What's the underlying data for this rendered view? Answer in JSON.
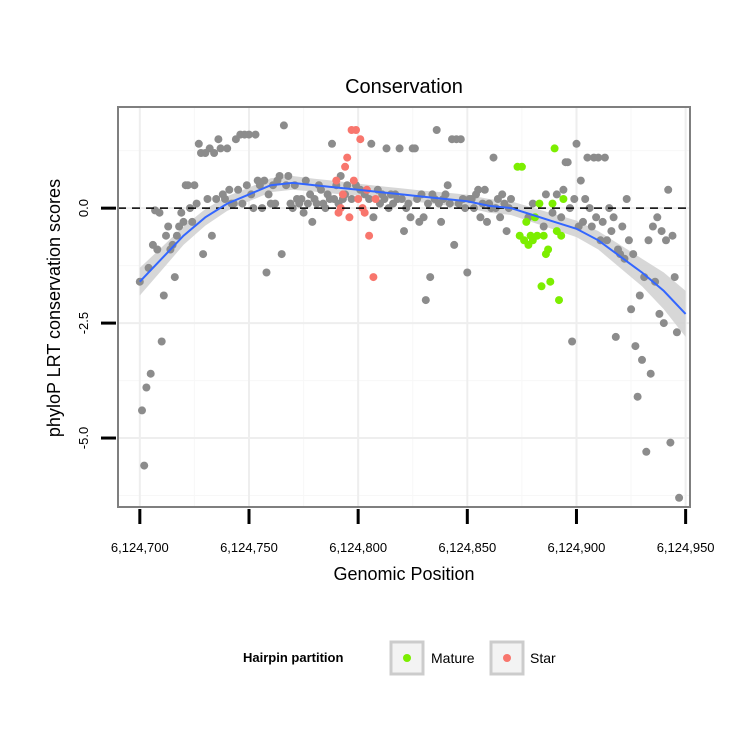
{
  "chart_data": {
    "type": "scatter",
    "title": "Conservation",
    "xlabel": "Genomic Position",
    "ylabel": "phyloP LRT conservation scores",
    "xlim": [
      6124690,
      6124952
    ],
    "ylim": [
      -6.5,
      2.2
    ],
    "x_ticks": [
      6124700,
      6124750,
      6124800,
      6124850,
      6124900,
      6124950
    ],
    "x_tick_labels": [
      "6,124,700",
      "6,124,750",
      "6,124,800",
      "6,124,850",
      "6,124,900",
      "6,124,950"
    ],
    "y_ticks": [
      0,
      -2.5,
      -5
    ],
    "y_tick_labels": [
      "0.0",
      "-2.5",
      "-5.0"
    ],
    "reference_line_y": 0,
    "legend": {
      "title": "Hairpin partition",
      "position": "bottom",
      "entries": [
        {
          "label": "Mature",
          "color": "#7cee00"
        },
        {
          "label": "Star",
          "color": "#f8766d"
        }
      ]
    },
    "colors": {
      "other": "#8c8c8c",
      "Mature": "#7cee00",
      "Star": "#f8766d",
      "trend": "#3366ff",
      "band": "#d0d0d0"
    },
    "series": [
      {
        "name": "Other",
        "points": [
          [
            6124700,
            -1.6
          ],
          [
            6124701,
            -4.4
          ],
          [
            6124702,
            -5.6
          ],
          [
            6124703,
            -3.9
          ],
          [
            6124704,
            -1.3
          ],
          [
            6124705,
            -3.6
          ],
          [
            6124706,
            -0.8
          ],
          [
            6124707,
            -0.05
          ],
          [
            6124708,
            -0.9
          ],
          [
            6124709,
            -0.1
          ],
          [
            6124710,
            -2.9
          ],
          [
            6124711,
            -1.9
          ],
          [
            6124712,
            -0.6
          ],
          [
            6124713,
            -0.4
          ],
          [
            6124714,
            -0.9
          ],
          [
            6124715,
            -0.8
          ],
          [
            6124716,
            -1.5
          ],
          [
            6124717,
            -0.6
          ],
          [
            6124718,
            -0.4
          ],
          [
            6124719,
            -0.1
          ],
          [
            6124720,
            -0.3
          ],
          [
            6124721,
            0.5
          ],
          [
            6124722,
            0.5
          ],
          [
            6124723,
            0.0
          ],
          [
            6124724,
            -0.3
          ],
          [
            6124725,
            0.5
          ],
          [
            6124726,
            0.1
          ],
          [
            6124727,
            1.4
          ],
          [
            6124728,
            1.2
          ],
          [
            6124729,
            -1.0
          ],
          [
            6124730,
            1.2
          ],
          [
            6124731,
            0.2
          ],
          [
            6124732,
            1.3
          ],
          [
            6124733,
            -0.6
          ],
          [
            6124734,
            1.2
          ],
          [
            6124735,
            0.2
          ],
          [
            6124736,
            1.5
          ],
          [
            6124737,
            1.3
          ],
          [
            6124738,
            0.3
          ],
          [
            6124739,
            0.2
          ],
          [
            6124740,
            1.3
          ],
          [
            6124741,
            0.4
          ],
          [
            6124742,
            0.1
          ],
          [
            6124743,
            0.1
          ],
          [
            6124744,
            1.5
          ],
          [
            6124745,
            0.4
          ],
          [
            6124746,
            1.6
          ],
          [
            6124747,
            0.1
          ],
          [
            6124748,
            1.6
          ],
          [
            6124749,
            0.5
          ],
          [
            6124750,
            1.6
          ],
          [
            6124751,
            0.3
          ],
          [
            6124752,
            0.0
          ],
          [
            6124753,
            1.6
          ],
          [
            6124754,
            0.6
          ],
          [
            6124755,
            0.5
          ],
          [
            6124756,
            0.0
          ],
          [
            6124757,
            0.6
          ],
          [
            6124758,
            -1.4
          ],
          [
            6124759,
            0.3
          ],
          [
            6124760,
            0.1
          ],
          [
            6124761,
            0.5
          ],
          [
            6124762,
            0.1
          ],
          [
            6124763,
            0.6
          ],
          [
            6124764,
            0.7
          ],
          [
            6124765,
            -1.0
          ],
          [
            6124766,
            1.8
          ],
          [
            6124767,
            0.5
          ],
          [
            6124768,
            0.7
          ],
          [
            6124769,
            0.1
          ],
          [
            6124770,
            0.0
          ],
          [
            6124771,
            0.5
          ],
          [
            6124772,
            0.2
          ],
          [
            6124773,
            0.1
          ],
          [
            6124774,
            0.2
          ],
          [
            6124775,
            -0.1
          ],
          [
            6124776,
            0.6
          ],
          [
            6124777,
            0.1
          ],
          [
            6124778,
            0.3
          ],
          [
            6124779,
            -0.3
          ],
          [
            6124780,
            0.2
          ],
          [
            6124781,
            0.1
          ],
          [
            6124782,
            0.5
          ],
          [
            6124783,
            0.4
          ],
          [
            6124784,
            0.1
          ],
          [
            6124785,
            0.0
          ],
          [
            6124786,
            0.3
          ],
          [
            6124787,
            0.2
          ],
          [
            6124788,
            1.4
          ],
          [
            6124789,
            0.2
          ],
          [
            6124790,
            0.5
          ],
          [
            6124791,
            0.1
          ],
          [
            6124792,
            0.7
          ],
          [
            6124793,
            0.2
          ],
          [
            6124794,
            0.3
          ],
          [
            6124795,
            0.5
          ],
          [
            6124797,
            0.2
          ],
          [
            6124799,
            0.5
          ],
          [
            6124801,
            0.4
          ],
          [
            6124803,
            0.3
          ],
          [
            6124805,
            0.2
          ],
          [
            6124806,
            1.4
          ],
          [
            6124807,
            -0.2
          ],
          [
            6124809,
            0.4
          ],
          [
            6124810,
            0.1
          ],
          [
            6124811,
            0.3
          ],
          [
            6124812,
            0.2
          ],
          [
            6124813,
            1.3
          ],
          [
            6124814,
            0.0
          ],
          [
            6124815,
            0.3
          ],
          [
            6124816,
            0.1
          ],
          [
            6124817,
            0.3
          ],
          [
            6124818,
            0.2
          ],
          [
            6124819,
            1.3
          ],
          [
            6124820,
            0.2
          ],
          [
            6124821,
            -0.5
          ],
          [
            6124822,
            0.0
          ],
          [
            6124823,
            0.1
          ],
          [
            6124824,
            -0.2
          ],
          [
            6124825,
            1.3
          ],
          [
            6124826,
            1.3
          ],
          [
            6124827,
            0.2
          ],
          [
            6124828,
            -0.3
          ],
          [
            6124829,
            0.3
          ],
          [
            6124830,
            -0.2
          ],
          [
            6124831,
            -2.0
          ],
          [
            6124832,
            0.1
          ],
          [
            6124833,
            -1.5
          ],
          [
            6124834,
            0.3
          ],
          [
            6124835,
            0.2
          ],
          [
            6124836,
            1.7
          ],
          [
            6124837,
            0.1
          ],
          [
            6124838,
            -0.3
          ],
          [
            6124839,
            0.2
          ],
          [
            6124840,
            0.3
          ],
          [
            6124841,
            0.5
          ],
          [
            6124842,
            0.1
          ],
          [
            6124843,
            1.5
          ],
          [
            6124844,
            -0.8
          ],
          [
            6124845,
            1.5
          ],
          [
            6124846,
            0.1
          ],
          [
            6124847,
            1.5
          ],
          [
            6124848,
            0.2
          ],
          [
            6124849,
            0.0
          ],
          [
            6124850,
            -1.4
          ],
          [
            6124851,
            0.2
          ],
          [
            6124852,
            0.2
          ],
          [
            6124853,
            0.0
          ],
          [
            6124854,
            0.3
          ],
          [
            6124855,
            0.4
          ],
          [
            6124856,
            -0.2
          ],
          [
            6124857,
            0.1
          ],
          [
            6124858,
            0.4
          ],
          [
            6124859,
            -0.3
          ],
          [
            6124860,
            0.1
          ],
          [
            6124861,
            0.0
          ],
          [
            6124862,
            1.1
          ],
          [
            6124863,
            0.0
          ],
          [
            6124864,
            0.2
          ],
          [
            6124865,
            -0.2
          ],
          [
            6124866,
            0.3
          ],
          [
            6124867,
            0.1
          ],
          [
            6124868,
            -0.5
          ],
          [
            6124869,
            0.0
          ],
          [
            6124870,
            0.2
          ],
          [
            6124878,
            -0.2
          ],
          [
            6124880,
            0.1
          ],
          [
            6124885,
            -0.4
          ],
          [
            6124886,
            0.3
          ],
          [
            6124889,
            -0.1
          ],
          [
            6124891,
            0.3
          ],
          [
            6124893,
            -0.2
          ],
          [
            6124894,
            0.4
          ],
          [
            6124895,
            1.0
          ],
          [
            6124896,
            1.0
          ],
          [
            6124897,
            0.0
          ],
          [
            6124898,
            -2.9
          ],
          [
            6124899,
            0.2
          ],
          [
            6124900,
            1.4
          ],
          [
            6124901,
            -0.4
          ],
          [
            6124902,
            0.6
          ],
          [
            6124903,
            -0.3
          ],
          [
            6124904,
            0.2
          ],
          [
            6124905,
            1.1
          ],
          [
            6124906,
            0.0
          ],
          [
            6124907,
            -0.4
          ],
          [
            6124908,
            1.1
          ],
          [
            6124909,
            -0.2
          ],
          [
            6124910,
            1.1
          ],
          [
            6124911,
            -0.7
          ],
          [
            6124912,
            -0.3
          ],
          [
            6124913,
            1.1
          ],
          [
            6124914,
            -0.7
          ],
          [
            6124915,
            0.0
          ],
          [
            6124916,
            -0.5
          ],
          [
            6124917,
            -0.2
          ],
          [
            6124918,
            -2.8
          ],
          [
            6124919,
            -0.9
          ],
          [
            6124920,
            -1.0
          ],
          [
            6124921,
            -0.4
          ],
          [
            6124922,
            -1.1
          ],
          [
            6124923,
            0.2
          ],
          [
            6124924,
            -0.7
          ],
          [
            6124925,
            -2.2
          ],
          [
            6124926,
            -1.0
          ],
          [
            6124927,
            -3.0
          ],
          [
            6124928,
            -4.1
          ],
          [
            6124929,
            -1.9
          ],
          [
            6124930,
            -3.3
          ],
          [
            6124931,
            -1.5
          ],
          [
            6124932,
            -5.3
          ],
          [
            6124933,
            -0.7
          ],
          [
            6124934,
            -3.6
          ],
          [
            6124935,
            -0.4
          ],
          [
            6124936,
            -1.6
          ],
          [
            6124937,
            -0.2
          ],
          [
            6124938,
            -2.3
          ],
          [
            6124939,
            -0.5
          ],
          [
            6124940,
            -2.5
          ],
          [
            6124941,
            -0.7
          ],
          [
            6124942,
            0.4
          ],
          [
            6124943,
            -5.1
          ],
          [
            6124944,
            -0.6
          ],
          [
            6124945,
            -1.5
          ],
          [
            6124946,
            -2.7
          ],
          [
            6124947,
            -6.3
          ]
        ]
      },
      {
        "name": "Star",
        "points": [
          [
            6124790,
            0.6
          ],
          [
            6124791,
            -0.1
          ],
          [
            6124792,
            0.0
          ],
          [
            6124793,
            0.3
          ],
          [
            6124794,
            0.9
          ],
          [
            6124795,
            1.1
          ],
          [
            6124796,
            -0.2
          ],
          [
            6124797,
            1.7
          ],
          [
            6124798,
            0.6
          ],
          [
            6124799,
            1.7
          ],
          [
            6124800,
            0.2
          ],
          [
            6124801,
            1.5
          ],
          [
            6124802,
            0.0
          ],
          [
            6124803,
            -0.1
          ],
          [
            6124804,
            0.4
          ],
          [
            6124805,
            -0.6
          ],
          [
            6124807,
            -1.5
          ],
          [
            6124808,
            0.2
          ]
        ]
      },
      {
        "name": "Mature",
        "points": [
          [
            6124873,
            0.9
          ],
          [
            6124874,
            -0.6
          ],
          [
            6124875,
            0.9
          ],
          [
            6124876,
            -0.7
          ],
          [
            6124877,
            -0.3
          ],
          [
            6124878,
            -0.8
          ],
          [
            6124879,
            -0.6
          ],
          [
            6124880,
            -0.7
          ],
          [
            6124881,
            -0.2
          ],
          [
            6124882,
            -0.6
          ],
          [
            6124883,
            0.1
          ],
          [
            6124884,
            -1.7
          ],
          [
            6124885,
            -0.6
          ],
          [
            6124886,
            -1.0
          ],
          [
            6124887,
            -0.9
          ],
          [
            6124888,
            -1.6
          ],
          [
            6124889,
            0.1
          ],
          [
            6124890,
            1.3
          ],
          [
            6124891,
            -0.5
          ],
          [
            6124892,
            -2.0
          ],
          [
            6124893,
            -0.6
          ],
          [
            6124894,
            0.2
          ]
        ]
      }
    ],
    "trend": {
      "x": [
        6124700,
        6124710,
        6124720,
        6124730,
        6124740,
        6124750,
        6124760,
        6124770,
        6124780,
        6124790,
        6124800,
        6124810,
        6124820,
        6124830,
        6124840,
        6124850,
        6124860,
        6124870,
        6124880,
        6124890,
        6124900,
        6124910,
        6124920,
        6124930,
        6124940,
        6124950
      ],
      "y": [
        -1.6,
        -1.1,
        -0.6,
        -0.2,
        0.1,
        0.3,
        0.5,
        0.55,
        0.5,
        0.45,
        0.4,
        0.35,
        0.3,
        0.25,
        0.2,
        0.15,
        0.05,
        0.0,
        -0.15,
        -0.3,
        -0.45,
        -0.7,
        -1.05,
        -1.4,
        -1.8,
        -2.3
      ],
      "band": [
        0.3,
        0.25,
        0.2,
        0.18,
        0.16,
        0.15,
        0.15,
        0.15,
        0.14,
        0.14,
        0.13,
        0.13,
        0.13,
        0.13,
        0.14,
        0.14,
        0.15,
        0.15,
        0.16,
        0.17,
        0.18,
        0.2,
        0.25,
        0.3,
        0.4,
        0.5
      ]
    }
  }
}
